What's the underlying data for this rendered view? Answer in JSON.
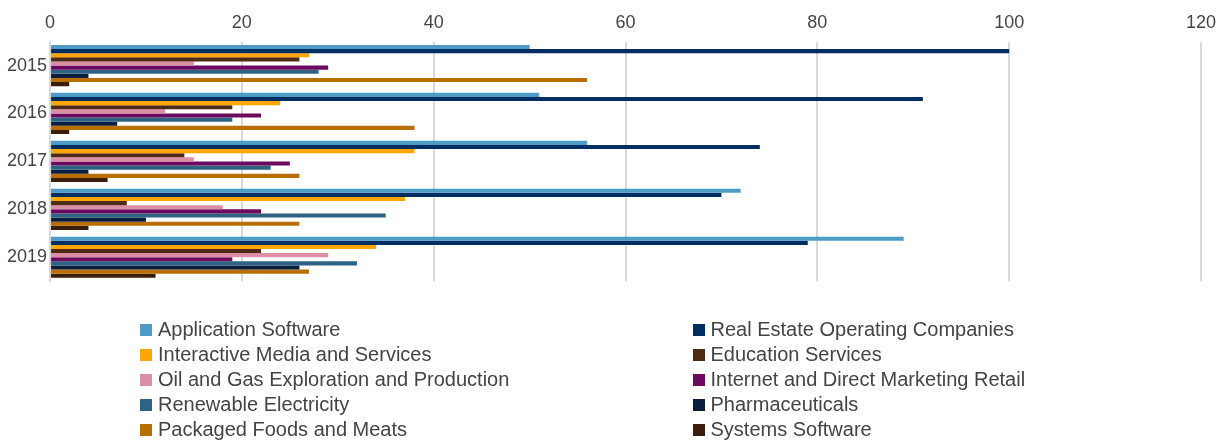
{
  "chart_data": {
    "type": "bar",
    "orientation": "horizontal",
    "categories": [
      "2015",
      "2016",
      "2017",
      "2018",
      "2019"
    ],
    "xlim": [
      0,
      120
    ],
    "xticks": [
      0,
      20,
      40,
      60,
      80,
      100,
      120
    ],
    "grid": "x",
    "legend": "bottom",
    "series": [
      {
        "name": "Application Software",
        "color": "#4e9ac7",
        "values": [
          50,
          51,
          56,
          72,
          89
        ]
      },
      {
        "name": "Real Estate Operating Companies",
        "color": "#002d62",
        "values": [
          100,
          91,
          74,
          70,
          79
        ]
      },
      {
        "name": "Interactive Media and Services",
        "color": "#ffa600",
        "values": [
          27,
          24,
          38,
          37,
          34
        ]
      },
      {
        "name": "Education Services",
        "color": "#4f2a16",
        "values": [
          26,
          19,
          14,
          8,
          22
        ]
      },
      {
        "name": "Oil and Gas Exploration and Production",
        "color": "#dd8ea7",
        "values": [
          15,
          12,
          15,
          18,
          29
        ]
      },
      {
        "name": "Internet and Direct Marketing Retail",
        "color": "#6b0a5e",
        "values": [
          29,
          22,
          25,
          22,
          19
        ]
      },
      {
        "name": "Renewable Electricity",
        "color": "#2e6384",
        "values": [
          28,
          19,
          23,
          35,
          32
        ]
      },
      {
        "name": "Pharmaceuticals",
        "color": "#0a1f3d",
        "values": [
          4,
          7,
          4,
          10,
          26
        ]
      },
      {
        "name": "Packaged Foods and Meats",
        "color": "#b86f00",
        "values": [
          56,
          38,
          26,
          26,
          27
        ]
      },
      {
        "name": "Systems Software",
        "color": "#3a1d0c",
        "values": [
          2,
          2,
          6,
          4,
          11
        ]
      }
    ]
  }
}
